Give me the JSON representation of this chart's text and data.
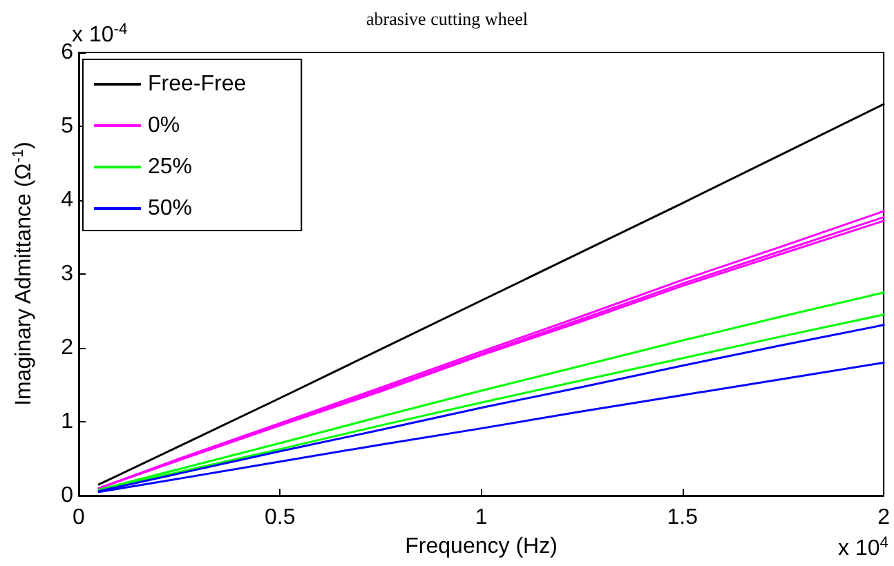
{
  "chart_data": {
    "type": "line",
    "title": "abrasive cutting wheel",
    "xlabel": "Frequency (Hz)",
    "ylabel": "Imaginary Admittance (Ω$^{-1}$)",
    "annotations": [
      "x 10$^{-4}$",
      "x 10$^{4}$"
    ],
    "x": [
      0.05,
      0.25,
      0.5,
      0.75,
      1,
      1.25,
      1.5,
      1.75,
      2
    ],
    "series": [
      {
        "name": "Free-Free",
        "color": "#000000",
        "values": [
          0.15,
          0.67,
          1.32,
          1.98,
          2.64,
          3.3,
          3.96,
          4.63,
          5.3
        ]
      },
      {
        "name": "0%",
        "color": "#ff00ff",
        "values": [
          0.1,
          0.5,
          0.98,
          1.46,
          1.95,
          2.43,
          2.92,
          3.38,
          3.85
        ]
      },
      {
        "color": "#ff00ff",
        "values": [
          0.1,
          0.49,
          0.96,
          1.43,
          1.92,
          2.39,
          2.87,
          3.32,
          3.77
        ]
      },
      {
        "color": "#ff00ff",
        "values": [
          0.1,
          0.48,
          0.95,
          1.41,
          1.9,
          2.36,
          2.84,
          3.28,
          3.72
        ]
      },
      {
        "name": "25%",
        "color": "#00ff00",
        "values": [
          0.08,
          0.36,
          0.71,
          1.07,
          1.42,
          1.76,
          2.1,
          2.43,
          2.75
        ]
      },
      {
        "color": "#00ff00",
        "values": [
          0.07,
          0.32,
          0.63,
          0.95,
          1.26,
          1.56,
          1.86,
          2.16,
          2.45
        ]
      },
      {
        "name": "50%",
        "color": "#0000ff",
        "values": [
          0.06,
          0.3,
          0.6,
          0.89,
          1.19,
          1.47,
          1.76,
          2.04,
          2.31
        ]
      },
      {
        "color": "#0000ff",
        "values": [
          0.05,
          0.23,
          0.46,
          0.69,
          0.91,
          1.14,
          1.36,
          1.58,
          1.8
        ]
      }
    ],
    "xlim": [
      0,
      2
    ],
    "xticks": [
      0,
      0.5,
      1,
      1.5,
      2
    ],
    "ylim": [
      0,
      6
    ],
    "yticks": [
      0,
      1,
      2,
      3,
      4,
      5,
      6
    ],
    "grid": false,
    "legend": "top left",
    "marker": "none",
    "line_style": "solid"
  }
}
